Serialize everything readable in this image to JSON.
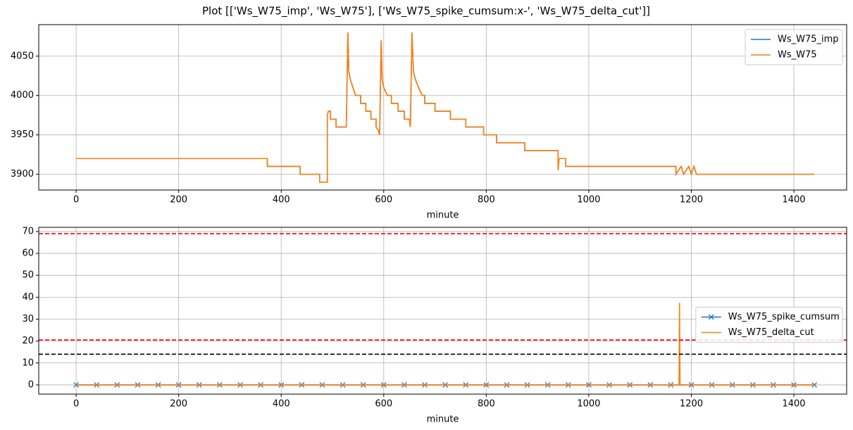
{
  "title": "Plot [['Ws_W75_imp', 'Ws_W75'], ['Ws_W75_spike_cumsum:x-', 'Ws_W75_delta_cut']]",
  "chart_data": [
    {
      "type": "line",
      "xlabel": "minute",
      "grid": true,
      "legend": "upper right",
      "xlim": [
        -73,
        1503
      ],
      "xticks": [
        0,
        200,
        400,
        600,
        800,
        1000,
        1200,
        1400
      ],
      "ylim": [
        3880,
        4090
      ],
      "yticks": [
        3900,
        3950,
        4000,
        4050
      ],
      "x": [
        0,
        373,
        373,
        437,
        437,
        475,
        475,
        490,
        490,
        492,
        496,
        496,
        507,
        507,
        527,
        530,
        532,
        535,
        540,
        545,
        555,
        555,
        565,
        565,
        575,
        575,
        585,
        585,
        590,
        592,
        595,
        597,
        600,
        607,
        615,
        615,
        628,
        628,
        640,
        640,
        650,
        652,
        655,
        658,
        662,
        668,
        675,
        680,
        680,
        700,
        700,
        730,
        730,
        760,
        760,
        795,
        795,
        820,
        820,
        875,
        875,
        940,
        940,
        942,
        955,
        955,
        1170,
        1170,
        1180,
        1185,
        1195,
        1200,
        1205,
        1210,
        1440
      ],
      "series": [
        {
          "name": "Ws_W75_imp",
          "color": "#1f77b4",
          "values": [
            3920,
            3920,
            3910,
            3910,
            3900,
            3900,
            3890,
            3890,
            3975,
            3980,
            3980,
            3970,
            3970,
            3960,
            3960,
            4080,
            4030,
            4020,
            4010,
            4000,
            4000,
            3990,
            3990,
            3980,
            3980,
            3970,
            3970,
            3960,
            3955,
            3950,
            4070,
            4020,
            4010,
            4000,
            4000,
            3990,
            3990,
            3980,
            3980,
            3970,
            3970,
            3960,
            4080,
            4030,
            4020,
            4010,
            4000,
            4000,
            3990,
            3990,
            3980,
            3980,
            3970,
            3970,
            3960,
            3960,
            3950,
            3950,
            3940,
            3940,
            3930,
            3930,
            3905,
            3920,
            3920,
            3910,
            3910,
            3900,
            3910,
            3900,
            3910,
            3900,
            3910,
            3900,
            3900
          ]
        },
        {
          "name": "Ws_W75",
          "color": "#ff7f0e",
          "values": [
            3920,
            3920,
            3910,
            3910,
            3900,
            3900,
            3890,
            3890,
            3975,
            3980,
            3980,
            3970,
            3970,
            3960,
            3960,
            4080,
            4030,
            4020,
            4010,
            4000,
            4000,
            3990,
            3990,
            3980,
            3980,
            3970,
            3970,
            3960,
            3955,
            3950,
            4070,
            4020,
            4010,
            4000,
            4000,
            3990,
            3990,
            3980,
            3980,
            3970,
            3970,
            3960,
            4080,
            4030,
            4020,
            4010,
            4000,
            4000,
            3990,
            3990,
            3980,
            3980,
            3970,
            3970,
            3960,
            3960,
            3950,
            3950,
            3940,
            3940,
            3930,
            3930,
            3905,
            3920,
            3920,
            3910,
            3910,
            3900,
            3910,
            3900,
            3910,
            3900,
            3910,
            3900,
            3900
          ]
        }
      ]
    },
    {
      "type": "line",
      "xlabel": "minute",
      "grid": true,
      "legend": "center right",
      "xlim": [
        -73,
        1503
      ],
      "xticks": [
        0,
        200,
        400,
        600,
        800,
        1000,
        1200,
        1400
      ],
      "ylim": [
        -4.2,
        71.9
      ],
      "yticks": [
        0,
        10,
        20,
        30,
        40,
        50,
        60,
        70
      ],
      "hlines": [
        {
          "value": 69,
          "color": "#ff0000",
          "style": "dashed"
        },
        {
          "value": 20.5,
          "color": "#ff0000",
          "style": "dashed"
        },
        {
          "value": 14,
          "color": "#000000",
          "style": "dashed"
        }
      ],
      "series": [
        {
          "name": "Ws_W75_spike_cumsum",
          "color": "#1f77b4",
          "marker": "x",
          "x": [
            0,
            40,
            80,
            120,
            160,
            200,
            240,
            280,
            320,
            360,
            400,
            440,
            480,
            520,
            560,
            600,
            640,
            680,
            720,
            760,
            800,
            840,
            880,
            920,
            960,
            1000,
            1040,
            1080,
            1120,
            1160,
            1200,
            1240,
            1280,
            1320,
            1360,
            1400,
            1440
          ],
          "values": [
            0,
            0,
            0,
            0,
            0,
            0,
            0,
            0,
            0,
            0,
            0,
            0,
            0,
            0,
            0,
            0,
            0,
            0,
            0,
            0,
            0,
            0,
            0,
            0,
            0,
            0,
            0,
            0,
            0,
            0,
            0,
            0,
            0,
            0,
            0,
            0,
            0
          ]
        },
        {
          "name": "Ws_W75_delta_cut",
          "color": "#ff7f0e",
          "x": [
            0,
            1176,
            1177,
            1178,
            1440
          ],
          "values": [
            0,
            0,
            37.5,
            0,
            0
          ]
        }
      ]
    }
  ]
}
